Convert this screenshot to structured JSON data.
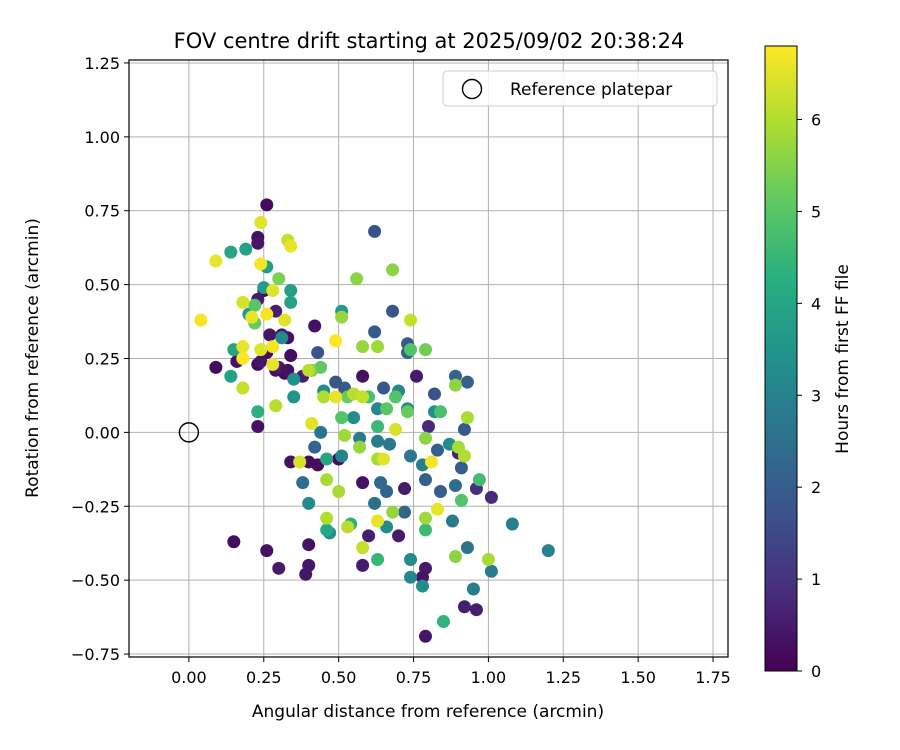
{
  "chart_data": {
    "type": "scatter",
    "title": "FOV centre drift starting at 2025/09/02 20:38:24",
    "xlabel": "Angular distance from reference (arcmin)",
    "ylabel": "Rotation from reference (arcmin)",
    "xlim": [
      -0.2,
      1.8
    ],
    "ylim": [
      -0.76,
      1.26
    ],
    "xticks": [
      0.0,
      0.25,
      0.5,
      0.75,
      1.0,
      1.25,
      1.5,
      1.75
    ],
    "xtick_labels": [
      "0.00",
      "0.25",
      "0.50",
      "0.75",
      "1.00",
      "1.25",
      "1.50",
      "1.75"
    ],
    "yticks": [
      -0.75,
      -0.5,
      -0.25,
      0.0,
      0.25,
      0.5,
      0.75,
      1.0,
      1.25
    ],
    "ytick_labels": [
      "−0.75",
      "−0.50",
      "−0.25",
      "0.00",
      "0.25",
      "0.50",
      "0.75",
      "1.00",
      "1.25"
    ],
    "grid": true,
    "legend": {
      "position": "upper right",
      "entries": [
        {
          "label": "Reference platepar",
          "marker": "open-circle"
        }
      ]
    },
    "reference_point": {
      "x": 0.0,
      "y": 0.0
    },
    "colorbar": {
      "label": "Hours from first FF file",
      "range": [
        0,
        6.8
      ],
      "ticks": [
        0,
        1,
        2,
        3,
        4,
        5,
        6
      ],
      "tick_labels": [
        "0",
        "1",
        "2",
        "3",
        "4",
        "5",
        "6"
      ],
      "colormap": "viridis"
    },
    "points": [
      {
        "x": 0.26,
        "y": 0.77,
        "h": 0.2
      },
      {
        "x": 0.23,
        "y": 0.66,
        "h": 0.3
      },
      {
        "x": 0.23,
        "y": 0.64,
        "h": 0.4
      },
      {
        "x": 0.25,
        "y": 0.48,
        "h": 0.2
      },
      {
        "x": 0.23,
        "y": 0.45,
        "h": 0.5
      },
      {
        "x": 0.29,
        "y": 0.41,
        "h": 0.6
      },
      {
        "x": 0.27,
        "y": 0.33,
        "h": 0.4
      },
      {
        "x": 0.31,
        "y": 0.33,
        "h": 0.5
      },
      {
        "x": 0.33,
        "y": 0.32,
        "h": 0.3
      },
      {
        "x": 0.26,
        "y": 0.27,
        "h": 0.2
      },
      {
        "x": 0.34,
        "y": 0.26,
        "h": 0.2
      },
      {
        "x": 0.42,
        "y": 0.36,
        "h": 0.3
      },
      {
        "x": 0.09,
        "y": 0.22,
        "h": 0.2
      },
      {
        "x": 0.16,
        "y": 0.24,
        "h": 0.3
      },
      {
        "x": 0.23,
        "y": 0.23,
        "h": 0.2
      },
      {
        "x": 0.24,
        "y": 0.24,
        "h": 0.4
      },
      {
        "x": 0.29,
        "y": 0.21,
        "h": 0.3
      },
      {
        "x": 0.32,
        "y": 0.2,
        "h": 0.2
      },
      {
        "x": 0.3,
        "y": 0.22,
        "h": 0.5
      },
      {
        "x": 0.33,
        "y": 0.21,
        "h": 0.3
      },
      {
        "x": 0.38,
        "y": 0.19,
        "h": 0.6
      },
      {
        "x": 0.23,
        "y": 0.02,
        "h": 0.3
      },
      {
        "x": 0.34,
        "y": -0.1,
        "h": 0.3
      },
      {
        "x": 0.4,
        "y": -0.1,
        "h": 0.2
      },
      {
        "x": 0.43,
        "y": -0.11,
        "h": 0.2
      },
      {
        "x": 0.15,
        "y": -0.37,
        "h": 0.2
      },
      {
        "x": 0.26,
        "y": -0.4,
        "h": 0.3
      },
      {
        "x": 0.3,
        "y": -0.46,
        "h": 0.5
      },
      {
        "x": 0.4,
        "y": -0.38,
        "h": 0.3
      },
      {
        "x": 0.4,
        "y": -0.45,
        "h": 0.4
      },
      {
        "x": 0.39,
        "y": -0.48,
        "h": 0.4
      },
      {
        "x": 0.5,
        "y": -0.09,
        "h": 0.2
      },
      {
        "x": 0.58,
        "y": -0.17,
        "h": 0.3
      },
      {
        "x": 0.58,
        "y": -0.45,
        "h": 0.5
      },
      {
        "x": 0.6,
        "y": -0.35,
        "h": 0.6
      },
      {
        "x": 0.58,
        "y": 0.19,
        "h": 0.3
      },
      {
        "x": 0.7,
        "y": -0.35,
        "h": 0.5
      },
      {
        "x": 0.72,
        "y": -0.19,
        "h": 0.5
      },
      {
        "x": 0.76,
        "y": 0.19,
        "h": 0.5
      },
      {
        "x": 0.79,
        "y": -0.46,
        "h": 0.5
      },
      {
        "x": 0.78,
        "y": -0.49,
        "h": 0.4
      },
      {
        "x": 0.79,
        "y": -0.69,
        "h": 0.4
      },
      {
        "x": 0.92,
        "y": -0.59,
        "h": 0.6
      },
      {
        "x": 0.96,
        "y": -0.6,
        "h": 0.6
      },
      {
        "x": 1.01,
        "y": -0.22,
        "h": 0.8
      },
      {
        "x": 0.96,
        "y": -0.19,
        "h": 0.9
      },
      {
        "x": 0.9,
        "y": -0.07,
        "h": 0.7
      },
      {
        "x": 0.8,
        "y": 0.02,
        "h": 0.8
      },
      {
        "x": 0.62,
        "y": 0.68,
        "h": 1.7
      },
      {
        "x": 0.68,
        "y": 0.41,
        "h": 1.8
      },
      {
        "x": 0.62,
        "y": 0.34,
        "h": 1.9
      },
      {
        "x": 0.73,
        "y": 0.3,
        "h": 1.9
      },
      {
        "x": 0.73,
        "y": 0.27,
        "h": 2.1
      },
      {
        "x": 0.43,
        "y": 0.27,
        "h": 1.7
      },
      {
        "x": 0.49,
        "y": 0.17,
        "h": 1.8
      },
      {
        "x": 0.52,
        "y": 0.15,
        "h": 1.9
      },
      {
        "x": 0.65,
        "y": 0.15,
        "h": 1.9
      },
      {
        "x": 0.82,
        "y": 0.13,
        "h": 1.7
      },
      {
        "x": 0.93,
        "y": 0.17,
        "h": 2.1
      },
      {
        "x": 0.89,
        "y": 0.19,
        "h": 2.2
      },
      {
        "x": 0.92,
        "y": 0.01,
        "h": 1.9
      },
      {
        "x": 0.83,
        "y": -0.06,
        "h": 2.1
      },
      {
        "x": 0.91,
        "y": -0.12,
        "h": 2.0
      },
      {
        "x": 0.84,
        "y": -0.2,
        "h": 2.0
      },
      {
        "x": 0.89,
        "y": -0.18,
        "h": 2.4
      },
      {
        "x": 0.79,
        "y": -0.16,
        "h": 2.1
      },
      {
        "x": 0.72,
        "y": -0.27,
        "h": 2.2
      },
      {
        "x": 0.62,
        "y": -0.24,
        "h": 2.5
      },
      {
        "x": 0.66,
        "y": -0.2,
        "h": 2.2
      },
      {
        "x": 0.64,
        "y": -0.17,
        "h": 2.3
      },
      {
        "x": 0.38,
        "y": -0.17,
        "h": 2.4
      },
      {
        "x": 0.42,
        "y": -0.05,
        "h": 2.2
      },
      {
        "x": 0.44,
        "y": 0.0,
        "h": 2.6
      },
      {
        "x": 0.57,
        "y": -0.02,
        "h": 2.8
      },
      {
        "x": 0.63,
        "y": -0.03,
        "h": 2.9
      },
      {
        "x": 0.67,
        "y": -0.04,
        "h": 2.7
      },
      {
        "x": 0.74,
        "y": -0.08,
        "h": 2.7
      },
      {
        "x": 0.78,
        "y": -0.11,
        "h": 2.9
      },
      {
        "x": 0.93,
        "y": -0.39,
        "h": 2.6
      },
      {
        "x": 0.88,
        "y": -0.3,
        "h": 2.8
      },
      {
        "x": 1.01,
        "y": -0.47,
        "h": 2.8
      },
      {
        "x": 0.95,
        "y": -0.53,
        "h": 2.9
      },
      {
        "x": 1.08,
        "y": -0.31,
        "h": 2.9
      },
      {
        "x": 1.2,
        "y": -0.4,
        "h": 3.0
      },
      {
        "x": 0.74,
        "y": -0.49,
        "h": 3.1
      },
      {
        "x": 0.78,
        "y": -0.52,
        "h": 3.3
      },
      {
        "x": 0.74,
        "y": -0.43,
        "h": 3.2
      },
      {
        "x": 0.66,
        "y": -0.32,
        "h": 3.3
      },
      {
        "x": 0.47,
        "y": -0.34,
        "h": 3.4
      },
      {
        "x": 0.4,
        "y": -0.24,
        "h": 3.2
      },
      {
        "x": 0.51,
        "y": -0.08,
        "h": 3.0
      },
      {
        "x": 0.55,
        "y": 0.05,
        "h": 3.3
      },
      {
        "x": 0.63,
        "y": 0.08,
        "h": 3.1
      },
      {
        "x": 0.73,
        "y": 0.08,
        "h": 3.3
      },
      {
        "x": 0.7,
        "y": 0.14,
        "h": 3.2
      },
      {
        "x": 0.82,
        "y": 0.07,
        "h": 3.4
      },
      {
        "x": 0.87,
        "y": -0.04,
        "h": 3.3
      },
      {
        "x": 0.31,
        "y": 0.32,
        "h": 3.2
      },
      {
        "x": 0.35,
        "y": 0.18,
        "h": 3.4
      },
      {
        "x": 0.45,
        "y": 0.14,
        "h": 3.3
      },
      {
        "x": 0.35,
        "y": 0.12,
        "h": 3.5
      },
      {
        "x": 0.51,
        "y": 0.41,
        "h": 3.6
      },
      {
        "x": 0.25,
        "y": 0.49,
        "h": 3.7
      },
      {
        "x": 0.34,
        "y": 0.48,
        "h": 3.8
      },
      {
        "x": 0.34,
        "y": 0.44,
        "h": 3.9
      },
      {
        "x": 0.26,
        "y": 0.56,
        "h": 3.8
      },
      {
        "x": 0.19,
        "y": 0.62,
        "h": 3.9
      },
      {
        "x": 0.14,
        "y": 0.61,
        "h": 4.0
      },
      {
        "x": 0.2,
        "y": 0.4,
        "h": 3.7
      },
      {
        "x": 0.15,
        "y": 0.28,
        "h": 4.0
      },
      {
        "x": 0.14,
        "y": 0.19,
        "h": 3.9
      },
      {
        "x": 0.23,
        "y": 0.07,
        "h": 4.3
      },
      {
        "x": 0.46,
        "y": -0.09,
        "h": 4.0
      },
      {
        "x": 0.46,
        "y": -0.33,
        "h": 4.1
      },
      {
        "x": 0.54,
        "y": -0.31,
        "h": 4.3
      },
      {
        "x": 0.63,
        "y": -0.43,
        "h": 4.5
      },
      {
        "x": 0.79,
        "y": -0.33,
        "h": 4.6
      },
      {
        "x": 0.85,
        "y": -0.64,
        "h": 4.4
      },
      {
        "x": 0.91,
        "y": -0.23,
        "h": 4.9
      },
      {
        "x": 0.97,
        "y": -0.16,
        "h": 4.7
      },
      {
        "x": 0.84,
        "y": 0.07,
        "h": 4.8
      },
      {
        "x": 0.69,
        "y": 0.12,
        "h": 4.9
      },
      {
        "x": 0.63,
        "y": 0.02,
        "h": 4.6
      },
      {
        "x": 0.6,
        "y": 0.12,
        "h": 4.8
      },
      {
        "x": 0.51,
        "y": 0.05,
        "h": 4.9
      },
      {
        "x": 0.74,
        "y": 0.28,
        "h": 4.9
      },
      {
        "x": 0.79,
        "y": 0.28,
        "h": 5.3
      },
      {
        "x": 0.73,
        "y": 0.07,
        "h": 5.2
      },
      {
        "x": 0.66,
        "y": 0.08,
        "h": 5.0
      },
      {
        "x": 0.53,
        "y": 0.12,
        "h": 5.2
      },
      {
        "x": 0.44,
        "y": 0.22,
        "h": 5.1
      },
      {
        "x": 0.41,
        "y": 0.21,
        "h": 5.3
      },
      {
        "x": 0.22,
        "y": 0.43,
        "h": 5.0
      },
      {
        "x": 0.22,
        "y": 0.37,
        "h": 5.2
      },
      {
        "x": 0.3,
        "y": 0.52,
        "h": 5.4
      },
      {
        "x": 0.56,
        "y": 0.52,
        "h": 5.6
      },
      {
        "x": 0.68,
        "y": 0.55,
        "h": 5.6
      },
      {
        "x": 0.51,
        "y": 0.39,
        "h": 5.7
      },
      {
        "x": 0.58,
        "y": 0.29,
        "h": 5.7
      },
      {
        "x": 0.63,
        "y": 0.29,
        "h": 5.8
      },
      {
        "x": 0.89,
        "y": 0.16,
        "h": 5.6
      },
      {
        "x": 0.93,
        "y": 0.05,
        "h": 5.9
      },
      {
        "x": 0.79,
        "y": -0.02,
        "h": 5.6
      },
      {
        "x": 0.9,
        "y": -0.05,
        "h": 5.9
      },
      {
        "x": 0.92,
        "y": -0.08,
        "h": 6.0
      },
      {
        "x": 1.0,
        "y": -0.43,
        "h": 5.9
      },
      {
        "x": 0.89,
        "y": -0.42,
        "h": 5.6
      },
      {
        "x": 0.79,
        "y": -0.29,
        "h": 5.8
      },
      {
        "x": 0.68,
        "y": -0.27,
        "h": 5.7
      },
      {
        "x": 0.63,
        "y": -0.09,
        "h": 5.9
      },
      {
        "x": 0.57,
        "y": -0.05,
        "h": 5.7
      },
      {
        "x": 0.52,
        "y": -0.01,
        "h": 5.8
      },
      {
        "x": 0.46,
        "y": -0.16,
        "h": 5.9
      },
      {
        "x": 0.46,
        "y": -0.29,
        "h": 6.0
      },
      {
        "x": 0.5,
        "y": -0.2,
        "h": 5.9
      },
      {
        "x": 0.53,
        "y": -0.32,
        "h": 6.1
      },
      {
        "x": 0.58,
        "y": -0.39,
        "h": 6.2
      },
      {
        "x": 0.4,
        "y": 0.21,
        "h": 6.1
      },
      {
        "x": 0.45,
        "y": 0.12,
        "h": 6.0
      },
      {
        "x": 0.55,
        "y": 0.13,
        "h": 6.1
      },
      {
        "x": 0.58,
        "y": 0.12,
        "h": 6.2
      },
      {
        "x": 0.74,
        "y": 0.38,
        "h": 6.2
      },
      {
        "x": 0.29,
        "y": 0.09,
        "h": 6.1
      },
      {
        "x": 0.33,
        "y": 0.65,
        "h": 6.2
      },
      {
        "x": 0.18,
        "y": 0.15,
        "h": 6.2
      },
      {
        "x": 0.37,
        "y": -0.1,
        "h": 6.4
      },
      {
        "x": 0.41,
        "y": 0.03,
        "h": 6.5
      },
      {
        "x": 0.49,
        "y": 0.12,
        "h": 6.6
      },
      {
        "x": 0.69,
        "y": 0.01,
        "h": 6.4
      },
      {
        "x": 0.65,
        "y": -0.09,
        "h": 6.5
      },
      {
        "x": 0.63,
        "y": -0.3,
        "h": 6.6
      },
      {
        "x": 0.83,
        "y": -0.26,
        "h": 6.6
      },
      {
        "x": 0.81,
        "y": -0.1,
        "h": 6.7
      },
      {
        "x": 0.24,
        "y": 0.71,
        "h": 6.5
      },
      {
        "x": 0.34,
        "y": 0.63,
        "h": 6.6
      },
      {
        "x": 0.24,
        "y": 0.57,
        "h": 6.7
      },
      {
        "x": 0.09,
        "y": 0.58,
        "h": 6.6
      },
      {
        "x": 0.28,
        "y": 0.48,
        "h": 6.5
      },
      {
        "x": 0.18,
        "y": 0.44,
        "h": 6.4
      },
      {
        "x": 0.04,
        "y": 0.38,
        "h": 6.7
      },
      {
        "x": 0.21,
        "y": 0.39,
        "h": 6.6
      },
      {
        "x": 0.26,
        "y": 0.4,
        "h": 6.7
      },
      {
        "x": 0.32,
        "y": 0.38,
        "h": 6.5
      },
      {
        "x": 0.49,
        "y": 0.31,
        "h": 6.8
      },
      {
        "x": 0.18,
        "y": 0.29,
        "h": 6.6
      },
      {
        "x": 0.24,
        "y": 0.28,
        "h": 6.5
      },
      {
        "x": 0.28,
        "y": 0.29,
        "h": 6.7
      },
      {
        "x": 0.18,
        "y": 0.25,
        "h": 6.8
      },
      {
        "x": 0.28,
        "y": 0.23,
        "h": 6.6
      }
    ]
  }
}
